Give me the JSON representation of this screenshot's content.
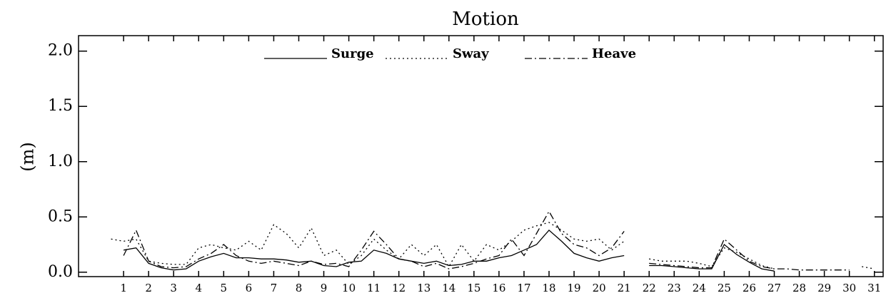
{
  "chart_data": {
    "type": "line",
    "title": "Motion",
    "y_label": "(m)",
    "x": [
      0.5,
      1,
      1.5,
      2,
      2.5,
      3,
      3.5,
      4,
      4.5,
      5,
      5.5,
      6,
      6.5,
      7,
      7.5,
      8,
      8.5,
      9,
      9.5,
      10,
      10.5,
      11,
      11.5,
      12,
      12.5,
      13,
      13.5,
      14,
      14.5,
      15,
      15.5,
      16,
      16.5,
      17,
      17.5,
      18,
      18.5,
      19,
      19.5,
      20,
      20.5,
      21,
      21.5,
      22,
      22.5,
      23,
      23.5,
      24,
      24.5,
      25,
      25.5,
      26,
      26.5,
      27,
      27.5,
      28,
      28.5,
      29,
      29.5,
      30,
      30.5,
      31
    ],
    "series": [
      {
        "name": "Surge",
        "color": "#000000",
        "dash": "none",
        "values": [
          null,
          0.2,
          0.22,
          0.08,
          0.04,
          0.02,
          0.03,
          0.1,
          0.14,
          0.17,
          0.13,
          0.13,
          0.12,
          0.12,
          0.11,
          0.09,
          0.1,
          0.06,
          0.05,
          0.09,
          0.1,
          0.2,
          0.17,
          0.12,
          0.1,
          0.08,
          0.1,
          0.06,
          0.07,
          0.1,
          0.1,
          0.13,
          0.15,
          0.2,
          0.25,
          0.38,
          0.28,
          0.17,
          0.13,
          0.1,
          0.13,
          0.15,
          null,
          0.06,
          0.06,
          0.05,
          0.04,
          0.03,
          0.03,
          0.25,
          0.16,
          0.09,
          0.03,
          0.01,
          null,
          null,
          null,
          null,
          null,
          null,
          null,
          null
        ]
      },
      {
        "name": "Sway",
        "color": "#000000",
        "dash": "2,4",
        "values": [
          0.3,
          0.28,
          0.3,
          0.1,
          0.08,
          0.07,
          0.07,
          0.22,
          0.25,
          0.22,
          0.2,
          0.28,
          0.2,
          0.43,
          0.35,
          0.22,
          0.4,
          0.15,
          0.2,
          0.07,
          0.15,
          0.3,
          0.2,
          0.12,
          0.25,
          0.15,
          0.25,
          0.05,
          0.25,
          0.1,
          0.25,
          0.2,
          0.28,
          0.38,
          0.42,
          0.45,
          0.38,
          0.3,
          0.28,
          0.3,
          0.2,
          0.28,
          null,
          0.12,
          0.1,
          0.1,
          0.1,
          0.08,
          0.05,
          0.22,
          0.18,
          0.12,
          0.06,
          0.03,
          null,
          null,
          null,
          null,
          null,
          null,
          0.05,
          0.03
        ]
      },
      {
        "name": "Heave",
        "color": "#000000",
        "dash": "10,4,2,4",
        "values": [
          null,
          0.15,
          0.38,
          0.1,
          0.05,
          0.04,
          0.05,
          0.12,
          0.17,
          0.25,
          0.15,
          0.1,
          0.08,
          0.1,
          0.08,
          0.06,
          0.1,
          0.07,
          0.08,
          0.05,
          0.2,
          0.37,
          0.25,
          0.12,
          0.1,
          0.05,
          0.08,
          0.03,
          0.05,
          0.08,
          0.12,
          0.15,
          0.3,
          0.15,
          0.35,
          0.55,
          0.35,
          0.25,
          0.22,
          0.15,
          0.22,
          0.37,
          null,
          0.08,
          0.07,
          0.06,
          0.05,
          0.04,
          0.04,
          0.3,
          0.2,
          0.1,
          0.05,
          0.03,
          0.03,
          0.02,
          0.02,
          0.02,
          0.02,
          0.02,
          null,
          null
        ]
      }
    ],
    "xlim": [
      -0.8,
      31.35
    ],
    "xticks": [
      1,
      2,
      3,
      4,
      5,
      6,
      7,
      8,
      9,
      10,
      11,
      12,
      13,
      14,
      15,
      16,
      17,
      18,
      19,
      20,
      21,
      22,
      23,
      24,
      25,
      26,
      27,
      28,
      29,
      30,
      31
    ],
    "ylim": [
      -0.04,
      2.14
    ],
    "yticks": [
      {
        "value": 0,
        "label": "0.0"
      },
      0.5,
      {
        "value": 1,
        "label": "1.0"
      },
      1.5,
      {
        "value": 2,
        "label": "2.0"
      }
    ]
  }
}
